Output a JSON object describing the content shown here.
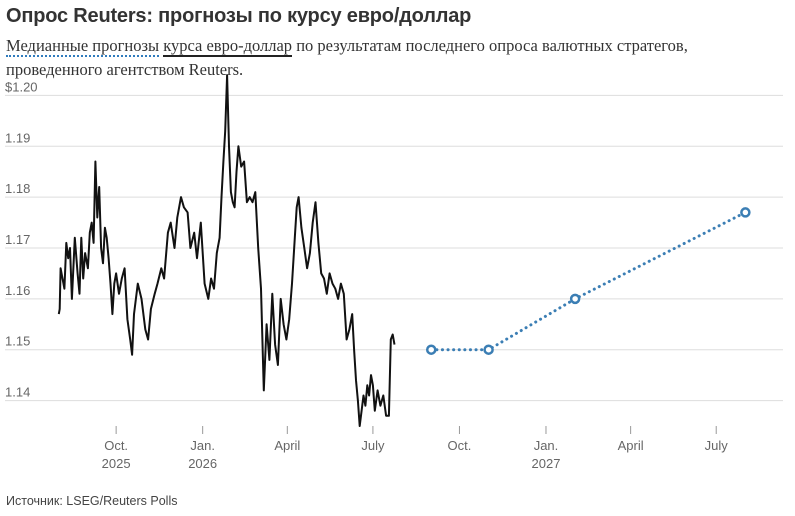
{
  "title": "Опрос Reuters: прогнозы по курсу евро/доллар",
  "subtitle": {
    "part1": "Медианные прогнозы",
    "part2": "курса евро-доллар",
    "part3": " по результатам последнего опроса валютных стратегов, проведенного агентством Reuters."
  },
  "source": "Источник: LSEG/Reuters Polls",
  "colors": {
    "actual": "#111111",
    "forecast": "#3b7eb4",
    "grid": "#dddddd"
  },
  "chart_data": {
    "type": "line",
    "title": "Опрос Reuters: прогнозы по курсу евро/доллар",
    "ylim": [
      1.135,
      1.205
    ],
    "y_ticks": [
      {
        "value": 1.2,
        "label": "$1.20"
      },
      {
        "value": 1.19,
        "label": "1.19"
      },
      {
        "value": 1.18,
        "label": "1.18"
      },
      {
        "value": 1.17,
        "label": "1.17"
      },
      {
        "value": 1.16,
        "label": "1.16"
      },
      {
        "value": 1.15,
        "label": "1.15"
      },
      {
        "value": 1.14,
        "label": "1.14"
      }
    ],
    "x_range": [
      "2025-07-28",
      "2027-09-10"
    ],
    "x_ticks": [
      {
        "date": "2025-10-01",
        "label": "Oct.",
        "sublabel": "2025"
      },
      {
        "date": "2026-01-01",
        "label": "Jan.",
        "sublabel": "2026"
      },
      {
        "date": "2026-04-01",
        "label": "April",
        "sublabel": ""
      },
      {
        "date": "2026-07-01",
        "label": "July",
        "sublabel": ""
      },
      {
        "date": "2026-10-01",
        "label": "Oct.",
        "sublabel": ""
      },
      {
        "date": "2027-01-01",
        "label": "Jan.",
        "sublabel": "2027"
      },
      {
        "date": "2027-04-01",
        "label": "April",
        "sublabel": ""
      },
      {
        "date": "2027-07-01",
        "label": "July",
        "sublabel": ""
      }
    ],
    "series": [
      {
        "kind": "actual",
        "points": [
          [
            "2025-08-01",
            1.157
          ],
          [
            "2025-08-02",
            1.158
          ],
          [
            "2025-08-03",
            1.166
          ],
          [
            "2025-08-05",
            1.164
          ],
          [
            "2025-08-07",
            1.162
          ],
          [
            "2025-08-09",
            1.171
          ],
          [
            "2025-08-11",
            1.168
          ],
          [
            "2025-08-13",
            1.17
          ],
          [
            "2025-08-15",
            1.16
          ],
          [
            "2025-08-18",
            1.172
          ],
          [
            "2025-08-21",
            1.165
          ],
          [
            "2025-08-23",
            1.161
          ],
          [
            "2025-08-25",
            1.172
          ],
          [
            "2025-08-27",
            1.164
          ],
          [
            "2025-08-29",
            1.169
          ],
          [
            "2025-09-01",
            1.166
          ],
          [
            "2025-09-03",
            1.173
          ],
          [
            "2025-09-05",
            1.175
          ],
          [
            "2025-09-07",
            1.171
          ],
          [
            "2025-09-09",
            1.187
          ],
          [
            "2025-09-11",
            1.176
          ],
          [
            "2025-09-13",
            1.182
          ],
          [
            "2025-09-15",
            1.17
          ],
          [
            "2025-09-17",
            1.167
          ],
          [
            "2025-09-19",
            1.174
          ],
          [
            "2025-09-21",
            1.172
          ],
          [
            "2025-09-23",
            1.168
          ],
          [
            "2025-09-25",
            1.163
          ],
          [
            "2025-09-27",
            1.157
          ],
          [
            "2025-09-29",
            1.163
          ],
          [
            "2025-10-01",
            1.165
          ],
          [
            "2025-10-04",
            1.161
          ],
          [
            "2025-10-07",
            1.164
          ],
          [
            "2025-10-10",
            1.166
          ],
          [
            "2025-10-13",
            1.156
          ],
          [
            "2025-10-16",
            1.152
          ],
          [
            "2025-10-18",
            1.149
          ],
          [
            "2025-10-20",
            1.157
          ],
          [
            "2025-10-24",
            1.163
          ],
          [
            "2025-10-28",
            1.16
          ],
          [
            "2025-11-01",
            1.154
          ],
          [
            "2025-11-04",
            1.152
          ],
          [
            "2025-11-07",
            1.158
          ],
          [
            "2025-11-11",
            1.161
          ],
          [
            "2025-11-14",
            1.163
          ],
          [
            "2025-11-18",
            1.166
          ],
          [
            "2025-11-21",
            1.164
          ],
          [
            "2025-11-25",
            1.173
          ],
          [
            "2025-11-28",
            1.175
          ],
          [
            "2025-12-02",
            1.17
          ],
          [
            "2025-12-05",
            1.176
          ],
          [
            "2025-12-09",
            1.18
          ],
          [
            "2025-12-12",
            1.178
          ],
          [
            "2025-12-16",
            1.177
          ],
          [
            "2025-12-19",
            1.17
          ],
          [
            "2025-12-23",
            1.173
          ],
          [
            "2025-12-26",
            1.168
          ],
          [
            "2025-12-30",
            1.175
          ],
          [
            "2026-01-03",
            1.163
          ],
          [
            "2026-01-07",
            1.16
          ],
          [
            "2026-01-10",
            1.164
          ],
          [
            "2026-01-13",
            1.162
          ],
          [
            "2026-01-16",
            1.169
          ],
          [
            "2026-01-19",
            1.172
          ],
          [
            "2026-01-21",
            1.18
          ],
          [
            "2026-01-23",
            1.187
          ],
          [
            "2026-01-25",
            1.193
          ],
          [
            "2026-01-27",
            1.204
          ],
          [
            "2026-01-29",
            1.19
          ],
          [
            "2026-01-31",
            1.181
          ],
          [
            "2026-02-02",
            1.179
          ],
          [
            "2026-02-04",
            1.178
          ],
          [
            "2026-02-06",
            1.185
          ],
          [
            "2026-02-08",
            1.19
          ],
          [
            "2026-02-11",
            1.186
          ],
          [
            "2026-02-14",
            1.187
          ],
          [
            "2026-02-17",
            1.179
          ],
          [
            "2026-02-20",
            1.18
          ],
          [
            "2026-02-23",
            1.179
          ],
          [
            "2026-02-26",
            1.181
          ],
          [
            "2026-03-01",
            1.17
          ],
          [
            "2026-03-04",
            1.162
          ],
          [
            "2026-03-07",
            1.142
          ],
          [
            "2026-03-10",
            1.155
          ],
          [
            "2026-03-13",
            1.148
          ],
          [
            "2026-03-16",
            1.161
          ],
          [
            "2026-03-19",
            1.151
          ],
          [
            "2026-03-22",
            1.147
          ],
          [
            "2026-03-25",
            1.16
          ],
          [
            "2026-03-28",
            1.155
          ],
          [
            "2026-03-31",
            1.152
          ],
          [
            "2026-04-03",
            1.156
          ],
          [
            "2026-04-06",
            1.163
          ],
          [
            "2026-04-09",
            1.172
          ],
          [
            "2026-04-11",
            1.178
          ],
          [
            "2026-04-13",
            1.18
          ],
          [
            "2026-04-16",
            1.174
          ],
          [
            "2026-04-19",
            1.17
          ],
          [
            "2026-04-22",
            1.166
          ],
          [
            "2026-04-25",
            1.169
          ],
          [
            "2026-04-28",
            1.175
          ],
          [
            "2026-05-01",
            1.179
          ],
          [
            "2026-05-04",
            1.171
          ],
          [
            "2026-05-07",
            1.165
          ],
          [
            "2026-05-10",
            1.164
          ],
          [
            "2026-05-13",
            1.161
          ],
          [
            "2026-05-16",
            1.165
          ],
          [
            "2026-05-19",
            1.163
          ],
          [
            "2026-05-22",
            1.162
          ],
          [
            "2026-05-25",
            1.16
          ],
          [
            "2026-05-28",
            1.163
          ],
          [
            "2026-05-31",
            1.161
          ],
          [
            "2026-06-03",
            1.152
          ],
          [
            "2026-06-06",
            1.154
          ],
          [
            "2026-06-09",
            1.157
          ],
          [
            "2026-06-11",
            1.15
          ],
          [
            "2026-06-13",
            1.144
          ],
          [
            "2026-06-15",
            1.14
          ],
          [
            "2026-06-17",
            1.135
          ],
          [
            "2026-06-19",
            1.138
          ],
          [
            "2026-06-21",
            1.141
          ],
          [
            "2026-06-23",
            1.139
          ],
          [
            "2026-06-25",
            1.143
          ],
          [
            "2026-06-27",
            1.141
          ],
          [
            "2026-06-29",
            1.145
          ],
          [
            "2026-07-01",
            1.143
          ],
          [
            "2026-07-03",
            1.138
          ],
          [
            "2026-07-06",
            1.142
          ],
          [
            "2026-07-09",
            1.139
          ],
          [
            "2026-07-12",
            1.141
          ],
          [
            "2026-07-15",
            1.137
          ],
          [
            "2026-07-18",
            1.137
          ],
          [
            "2026-07-20",
            1.152
          ],
          [
            "2026-07-22",
            1.153
          ],
          [
            "2026-07-24",
            1.151
          ]
        ]
      },
      {
        "kind": "forecast",
        "points": [
          [
            "2026-09-01",
            1.15
          ],
          [
            "2026-11-01",
            1.15
          ],
          [
            "2027-02-01",
            1.16
          ],
          [
            "2027-08-01",
            1.177
          ]
        ]
      }
    ]
  }
}
